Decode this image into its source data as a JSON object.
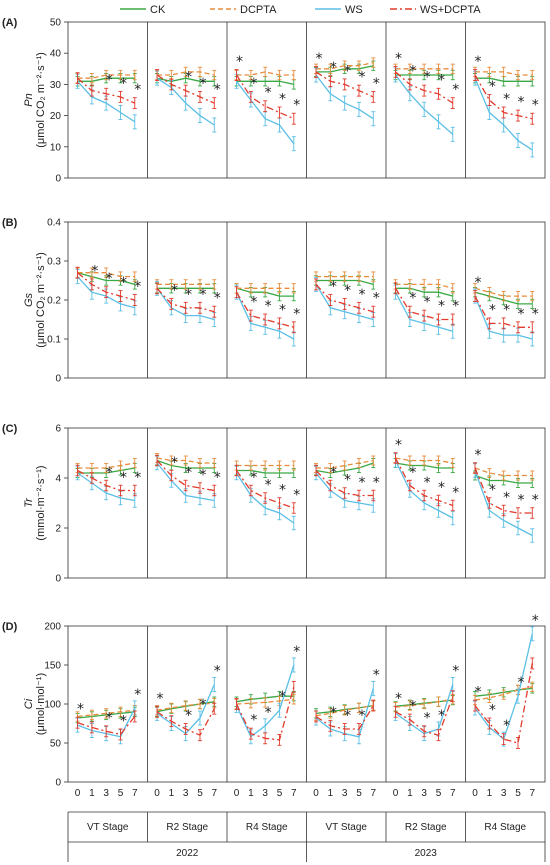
{
  "legend": [
    {
      "name": "CK",
      "color": "#3aa845",
      "dash": ""
    },
    {
      "name": "DCPTA",
      "color": "#e88c3c",
      "dash": "5,3"
    },
    {
      "name": "WS",
      "color": "#5bbfe6",
      "dash": ""
    },
    {
      "name": "WS+DCPTA",
      "color": "#e23a2c",
      "dash": "7,3,2,3"
    }
  ],
  "x_days": [
    "0",
    "1",
    "3",
    "5",
    "7"
  ],
  "stages": [
    "VT Stage",
    "R2 Stage",
    "R4 Stage",
    "VT Stage",
    "R2 Stage",
    "R4 Stage"
  ],
  "years": [
    "2022",
    "2023"
  ],
  "chart_data": [
    {
      "type": "line",
      "panel_label": "(A)",
      "ylabel": [
        "Pn",
        "(μmol CO₂ m⁻²·s⁻¹)"
      ],
      "ylim": [
        0,
        50
      ],
      "yticks": [
        0,
        10,
        20,
        30,
        40,
        50
      ],
      "groups": [
        {
          "stage": "VT Stage",
          "year": "2022",
          "series": {
            "CK": [
              31,
              31,
              32,
              32,
              32
            ],
            "DCPTA": [
              32,
              32,
              33,
              33,
              33
            ],
            "WS": [
              31,
              26,
              24,
              21,
              18
            ],
            "WS+DCPTA": [
              32,
              28,
              27,
              26,
              24
            ]
          },
          "stars": [
            0,
            0,
            1,
            1,
            1
          ]
        },
        {
          "stage": "R2 Stage",
          "year": "2022",
          "series": {
            "CK": [
              32,
              31,
              32,
              31,
              31
            ],
            "DCPTA": [
              33,
              33,
              34,
              34,
              33
            ],
            "WS": [
              32,
              29,
              24,
              20,
              17
            ],
            "WS+DCPTA": [
              33,
              30,
              28,
              26,
              24
            ]
          },
          "stars": [
            0,
            0,
            1,
            1,
            1
          ]
        },
        {
          "stage": "R4 Stage",
          "year": "2022",
          "series": {
            "CK": [
              31,
              31,
              31,
              31,
              30
            ],
            "DCPTA": [
              33,
              33,
              34,
              33,
              33
            ],
            "WS": [
              31,
              25,
              19,
              17,
              11
            ],
            "WS+DCPTA": [
              33,
              26,
              23,
              21,
              19
            ]
          },
          "stars": [
            1,
            1,
            1,
            1,
            1
          ]
        },
        {
          "stage": "VT Stage",
          "year": "2023",
          "series": {
            "CK": [
              34,
              34,
              35,
              35,
              36
            ],
            "DCPTA": [
              35,
              35,
              36,
              36,
              37
            ],
            "WS": [
              33,
              27,
              24,
              22,
              19
            ],
            "WS+DCPTA": [
              34,
              31,
              30,
              28,
              26
            ]
          },
          "stars": [
            1,
            1,
            1,
            1,
            1
          ]
        },
        {
          "stage": "R2 Stage",
          "year": "2023",
          "series": {
            "CK": [
              33,
              33,
              33,
              33,
              33
            ],
            "DCPTA": [
              35,
              35,
              35,
              35,
              35
            ],
            "WS": [
              33,
              27,
              22,
              18,
              14
            ],
            "WS+DCPTA": [
              34,
              30,
              28,
              27,
              24
            ]
          },
          "stars": [
            1,
            1,
            1,
            1,
            1
          ]
        },
        {
          "stage": "R4 Stage",
          "year": "2023",
          "series": {
            "CK": [
              32,
              32,
              31,
              31,
              31
            ],
            "DCPTA": [
              34,
              34,
              34,
              33,
              33
            ],
            "WS": [
              32,
              21,
              17,
              12,
              9
            ],
            "WS+DCPTA": [
              33,
              25,
              21,
              20,
              19
            ]
          },
          "stars": [
            1,
            1,
            1,
            1,
            1
          ]
        }
      ]
    },
    {
      "type": "line",
      "panel_label": "(B)",
      "ylabel": [
        "Gs",
        "(μmol CO₂ m⁻²·s⁻¹)"
      ],
      "ylim": [
        0,
        0.4
      ],
      "yticks": [
        0,
        0.1,
        0.2,
        0.3,
        0.4
      ],
      "groups": [
        {
          "stage": "VT Stage",
          "year": "2022",
          "series": {
            "CK": [
              0.27,
              0.26,
              0.25,
              0.25,
              0.24
            ],
            "DCPTA": [
              0.27,
              0.27,
              0.27,
              0.26,
              0.26
            ],
            "WS": [
              0.26,
              0.22,
              0.21,
              0.19,
              0.18
            ],
            "WS+DCPTA": [
              0.27,
              0.24,
              0.22,
              0.21,
              0.2
            ]
          },
          "stars": [
            0,
            1,
            1,
            1,
            1
          ]
        },
        {
          "stage": "R2 Stage",
          "year": "2022",
          "series": {
            "CK": [
              0.23,
              0.23,
              0.23,
              0.23,
              0.23
            ],
            "DCPTA": [
              0.24,
              0.24,
              0.24,
              0.24,
              0.24
            ],
            "WS": [
              0.23,
              0.18,
              0.16,
              0.16,
              0.15
            ],
            "WS+DCPTA": [
              0.23,
              0.19,
              0.18,
              0.18,
              0.17
            ]
          },
          "stars": [
            0,
            1,
            1,
            1,
            1
          ]
        },
        {
          "stage": "R4 Stage",
          "year": "2022",
          "series": {
            "CK": [
              0.23,
              0.22,
              0.22,
              0.21,
              0.21
            ],
            "DCPTA": [
              0.23,
              0.23,
              0.23,
              0.23,
              0.23
            ],
            "WS": [
              0.22,
              0.14,
              0.13,
              0.12,
              0.1
            ],
            "WS+DCPTA": [
              0.22,
              0.16,
              0.15,
              0.14,
              0.13
            ]
          },
          "stars": [
            0,
            1,
            1,
            1,
            1
          ]
        },
        {
          "stage": "VT Stage",
          "year": "2023",
          "series": {
            "CK": [
              0.25,
              0.25,
              0.25,
              0.25,
              0.24
            ],
            "DCPTA": [
              0.26,
              0.26,
              0.26,
              0.26,
              0.26
            ],
            "WS": [
              0.24,
              0.18,
              0.17,
              0.16,
              0.15
            ],
            "WS+DCPTA": [
              0.24,
              0.2,
              0.19,
              0.18,
              0.17
            ]
          },
          "stars": [
            0,
            1,
            1,
            1,
            1
          ]
        },
        {
          "stage": "R2 Stage",
          "year": "2023",
          "series": {
            "CK": [
              0.23,
              0.23,
              0.22,
              0.22,
              0.21
            ],
            "DCPTA": [
              0.24,
              0.24,
              0.24,
              0.24,
              0.23
            ],
            "WS": [
              0.22,
              0.15,
              0.14,
              0.13,
              0.12
            ],
            "WS+DCPTA": [
              0.23,
              0.17,
              0.16,
              0.15,
              0.15
            ]
          },
          "stars": [
            0,
            1,
            1,
            1,
            1
          ]
        },
        {
          "stage": "R4 Stage",
          "year": "2023",
          "series": {
            "CK": [
              0.22,
              0.21,
              0.2,
              0.19,
              0.19
            ],
            "DCPTA": [
              0.23,
              0.22,
              0.21,
              0.21,
              0.21
            ],
            "WS": [
              0.21,
              0.12,
              0.11,
              0.11,
              0.1
            ],
            "WS+DCPTA": [
              0.21,
              0.14,
              0.14,
              0.13,
              0.13
            ]
          },
          "stars": [
            1,
            1,
            1,
            1,
            1
          ]
        }
      ]
    },
    {
      "type": "line",
      "panel_label": "(C)",
      "ylabel": [
        "Tr",
        "(mmol·m⁻²·s⁻¹)"
      ],
      "ylim": [
        0,
        6
      ],
      "yticks": [
        0,
        2,
        4,
        6
      ],
      "groups": [
        {
          "stage": "VT Stage",
          "year": "2022",
          "series": {
            "CK": [
              4.2,
              4.2,
              4.2,
              4.3,
              4.4
            ],
            "DCPTA": [
              4.4,
              4.4,
              4.4,
              4.5,
              4.6
            ],
            "WS": [
              4.2,
              3.8,
              3.4,
              3.2,
              3.1
            ],
            "WS+DCPTA": [
              4.3,
              4,
              3.7,
              3.5,
              3.5
            ]
          },
          "stars": [
            0,
            0,
            1,
            1,
            1
          ]
        },
        {
          "stage": "R2 Stage",
          "year": "2022",
          "series": {
            "CK": [
              4.7,
              4.5,
              4.4,
              4.4,
              4.4
            ],
            "DCPTA": [
              4.8,
              4.7,
              4.7,
              4.6,
              4.6
            ],
            "WS": [
              4.6,
              3.9,
              3.3,
              3.2,
              3.1
            ],
            "WS+DCPTA": [
              4.7,
              4.1,
              3.7,
              3.6,
              3.5
            ]
          },
          "stars": [
            0,
            1,
            1,
            1,
            1
          ]
        },
        {
          "stage": "R4 Stage",
          "year": "2022",
          "series": {
            "CK": [
              4.3,
              4.3,
              4.2,
              4.2,
              4.2
            ],
            "DCPTA": [
              4.5,
              4.5,
              4.5,
              4.5,
              4.5
            ],
            "WS": [
              4.2,
              3.3,
              2.8,
              2.6,
              2.2
            ],
            "WS+DCPTA": [
              4.3,
              3.5,
              3.2,
              3.0,
              2.8
            ]
          },
          "stars": [
            0,
            1,
            1,
            1,
            1
          ]
        },
        {
          "stage": "VT Stage",
          "year": "2023",
          "series": {
            "CK": [
              4.3,
              4.2,
              4.3,
              4.4,
              4.6
            ],
            "DCPTA": [
              4.4,
              4.4,
              4.5,
              4.6,
              4.7
            ],
            "WS": [
              4.2,
              3.5,
              3.1,
              3.0,
              2.9
            ],
            "WS+DCPTA": [
              4.3,
              3.7,
              3.4,
              3.3,
              3.3
            ]
          },
          "stars": [
            0,
            1,
            1,
            1,
            1
          ]
        },
        {
          "stage": "R2 Stage",
          "year": "2023",
          "series": {
            "CK": [
              4.6,
              4.5,
              4.5,
              4.4,
              4.4
            ],
            "DCPTA": [
              4.8,
              4.7,
              4.7,
              4.7,
              4.6
            ],
            "WS": [
              4.7,
              3.5,
              3.0,
              2.7,
              2.4
            ],
            "WS+DCPTA": [
              4.8,
              3.7,
              3.3,
              3.1,
              2.9
            ]
          },
          "stars": [
            1,
            1,
            1,
            1,
            1
          ]
        },
        {
          "stage": "R4 Stage",
          "year": "2023",
          "series": {
            "CK": [
              4.1,
              3.9,
              3.9,
              3.8,
              3.8
            ],
            "DCPTA": [
              4.4,
              4.2,
              4.1,
              4.1,
              4.1
            ],
            "WS": [
              4.3,
              2.7,
              2.3,
              2.0,
              1.7
            ],
            "WS+DCPTA": [
              4.4,
              3.0,
              2.7,
              2.6,
              2.6
            ]
          },
          "stars": [
            1,
            1,
            1,
            1,
            1
          ]
        }
      ]
    },
    {
      "type": "line",
      "panel_label": "(D)",
      "ylabel": [
        "Ci",
        "(μmol·mol⁻¹)"
      ],
      "ylim": [
        0,
        200
      ],
      "yticks": [
        0,
        50,
        100,
        150,
        200
      ],
      "groups": [
        {
          "stage": "VT Stage",
          "year": "2022",
          "series": {
            "CK": [
              82,
              84,
              86,
              88,
              90
            ],
            "DCPTA": [
              84,
              86,
              88,
              90,
              92
            ],
            "WS": [
              73,
              66,
              62,
              58,
              95
            ],
            "WS+DCPTA": [
              76,
              70,
              65,
              61,
              84
            ]
          },
          "stars": [
            1,
            0,
            1,
            1,
            1
          ]
        },
        {
          "stage": "R2 Stage",
          "year": "2022",
          "series": {
            "CK": [
              90,
              94,
              97,
              100,
              103
            ],
            "DCPTA": [
              92,
              95,
              98,
              100,
              101
            ],
            "WS": [
              88,
              75,
              62,
              82,
              125
            ],
            "WS+DCPTA": [
              90,
              78,
              68,
              60,
              94
            ]
          },
          "stars": [
            1,
            0,
            1,
            1,
            1
          ]
        },
        {
          "stage": "R4 Stage",
          "year": "2022",
          "series": {
            "CK": [
              103,
              106,
              108,
              110,
              110
            ],
            "DCPTA": [
              100,
              101,
              102,
              104,
              106
            ],
            "WS": [
              98,
              58,
              72,
              92,
              150
            ],
            "WS+DCPTA": [
              100,
              62,
              56,
              54,
              122
            ]
          },
          "stars": [
            0,
            1,
            1,
            1,
            1
          ]
        },
        {
          "stage": "VT Stage",
          "year": "2023",
          "series": {
            "CK": [
              88,
              90,
              93,
              95,
              98
            ],
            "DCPTA": [
              85,
              88,
              92,
              95,
              98
            ],
            "WS": [
              82,
              68,
              62,
              58,
              120
            ],
            "WS+DCPTA": [
              84,
              72,
              68,
              68,
              98
            ]
          },
          "stars": [
            0,
            1,
            1,
            1,
            1
          ]
        },
        {
          "stage": "R2 Stage",
          "year": "2023",
          "series": {
            "CK": [
              97,
              99,
              101,
              103,
              105
            ],
            "DCPTA": [
              96,
              98,
              100,
              103,
              106
            ],
            "WS": [
              88,
              75,
              62,
              68,
              125
            ],
            "WS+DCPTA": [
              90,
              80,
              65,
              60,
              110
            ]
          },
          "stars": [
            1,
            1,
            1,
            1,
            1
          ]
        },
        {
          "stage": "R4 Stage",
          "year": "2023",
          "series": {
            "CK": [
              110,
              112,
              115,
              118,
              120
            ],
            "DCPTA": [
              105,
              108,
              112,
              118,
              122
            ],
            "WS": [
              95,
              70,
              55,
              110,
              190
            ],
            "WS+DCPTA": [
              98,
              75,
              55,
              50,
              152
            ]
          },
          "stars": [
            1,
            1,
            1,
            1,
            1
          ]
        }
      ]
    }
  ]
}
